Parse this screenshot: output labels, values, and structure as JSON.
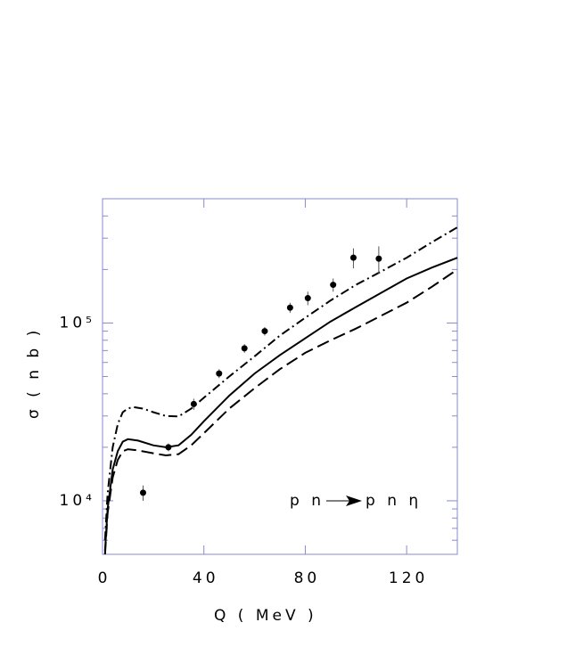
{
  "chart_data": {
    "type": "line",
    "yscale": "log",
    "xlabel": "Q ( MeV )",
    "ylabel": "σ ( n b )",
    "annotation": {
      "left": "p n",
      "right": "p n η"
    },
    "xlim": [
      0,
      140
    ],
    "xticks": [
      0,
      40,
      80,
      120
    ],
    "ylim": [
      5000,
      500000
    ],
    "yticks": [
      {
        "value": 10000,
        "label": "10⁴"
      },
      {
        "value": 100000,
        "label": "10⁵"
      }
    ],
    "yticks_minor": [
      6000,
      7000,
      8000,
      9000,
      20000,
      30000,
      40000,
      50000,
      60000,
      70000,
      80000,
      90000,
      200000,
      300000,
      400000
    ],
    "series": [
      {
        "style": "solid",
        "color": "#000000",
        "x": [
          1,
          2,
          4,
          6,
          8,
          10,
          14,
          20,
          25,
          30,
          35,
          40,
          50,
          60,
          70,
          80,
          90,
          100,
          110,
          120,
          130,
          140
        ],
        "values": [
          5200,
          9000,
          15000,
          19000,
          21500,
          22200,
          21800,
          20500,
          20000,
          20500,
          23500,
          28000,
          39000,
          52000,
          66000,
          82000,
          102000,
          123000,
          148000,
          178000,
          205000,
          233000
        ]
      },
      {
        "style": "dashed",
        "color": "#000000",
        "x": [
          1,
          2,
          4,
          6,
          8,
          10,
          14,
          20,
          25,
          30,
          35,
          40,
          50,
          60,
          70,
          80,
          90,
          100,
          110,
          120,
          130,
          140
        ],
        "values": [
          5000,
          8500,
          13500,
          17000,
          19000,
          19500,
          19200,
          18500,
          18000,
          18300,
          20500,
          24000,
          33000,
          43000,
          55000,
          68000,
          80000,
          93000,
          110000,
          130000,
          160000,
          200000
        ]
      },
      {
        "style": "dashdot",
        "color": "#000000",
        "x": [
          1,
          2,
          4,
          6,
          8,
          10,
          12,
          16,
          20,
          25,
          30,
          35,
          40,
          50,
          60,
          70,
          80,
          90,
          100,
          110,
          120,
          130,
          140
        ],
        "values": [
          6000,
          11000,
          20000,
          27000,
          31500,
          33000,
          33700,
          33000,
          31500,
          30000,
          29800,
          33000,
          38000,
          50000,
          65000,
          85000,
          107000,
          134000,
          164000,
          195000,
          233000,
          285000,
          345000
        ]
      }
    ],
    "points": {
      "color": "#000000",
      "x": [
        16,
        26,
        36,
        46,
        56,
        64,
        74,
        81,
        91,
        99,
        109
      ],
      "values": [
        11100,
        20000,
        35000,
        52000,
        72000,
        90000,
        122000,
        138000,
        164000,
        233000,
        230000
      ],
      "errors": [
        1100,
        1000,
        2500,
        3000,
        4000,
        5000,
        8000,
        12000,
        14000,
        30000,
        40000
      ]
    }
  }
}
